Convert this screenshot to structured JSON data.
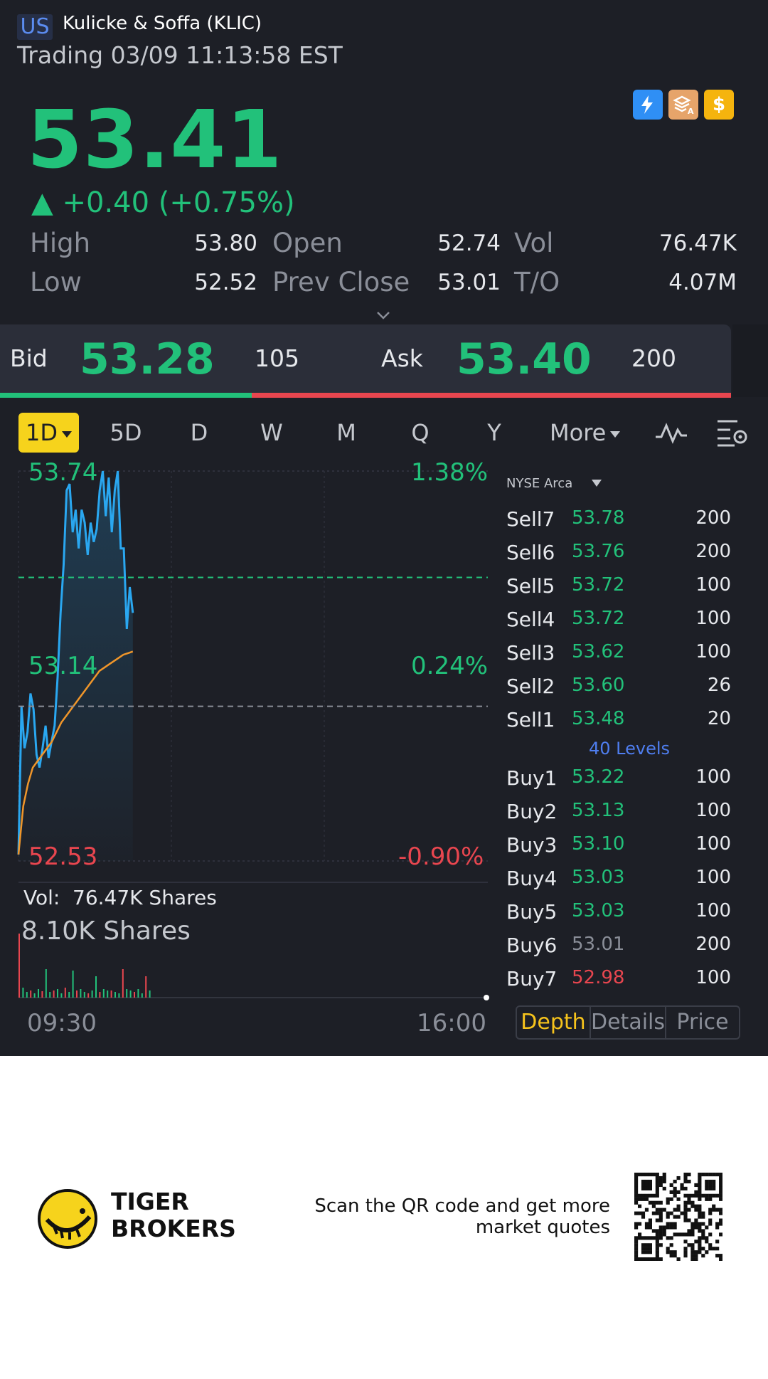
{
  "header": {
    "market": "US",
    "stock_name": "Kulicke & Soffa (KLIC)",
    "status": "Trading 03/09 11:13:58 EST",
    "price": "53.41",
    "change": "▲ +0.40 (+0.75%)",
    "badge_icons": [
      "lightning-1-icon",
      "stack-a-icon",
      "dollar-icon"
    ]
  },
  "stats": {
    "high_label": "High",
    "high": "53.80",
    "low_label": "Low",
    "low": "52.52",
    "open_label": "Open",
    "open": "52.74",
    "prev_close_label": "Prev Close",
    "prev_close": "53.01",
    "vol_label": "Vol",
    "vol": "76.47K",
    "to_label": "T/O",
    "to": "4.07M"
  },
  "bidask": {
    "bid_label": "Bid",
    "bid": "53.28",
    "bid_size": "105",
    "ask_label": "Ask",
    "ask": "53.40",
    "ask_size": "200",
    "bid_ratio": 0.344
  },
  "tabs": [
    "1D",
    "5D",
    "D",
    "W",
    "M",
    "Q",
    "Y",
    "More"
  ],
  "chart": {
    "labels": {
      "top_price": "53.74",
      "top_pct": "1.38%",
      "mid_price": "53.14",
      "mid_pct": "0.24%",
      "low_price": "52.53",
      "low_pct": "-0.90%",
      "vol_label": "Vol:",
      "vol_value": "76.47K Shares",
      "vol_max": "8.10K Shares",
      "time_start": "09:30",
      "time_end": "16:00"
    }
  },
  "chart_data": {
    "type": "line",
    "x_range": [
      "09:30",
      "16:00"
    ],
    "ylim": [
      52.53,
      53.74
    ],
    "prev_close": 53.01,
    "series": [
      {
        "values": [
          52.55,
          53.01,
          52.88,
          52.93,
          53.05,
          53.0,
          52.86,
          52.82,
          52.88,
          52.95,
          52.85,
          52.9,
          52.95,
          53.1,
          53.3,
          53.45,
          53.68,
          53.7,
          53.55,
          53.62,
          53.5,
          53.62,
          53.58,
          53.48,
          53.58,
          53.52,
          53.56,
          53.68,
          53.74,
          53.6,
          53.72,
          53.55,
          53.68,
          53.74,
          53.5,
          53.5,
          53.25,
          53.38,
          53.3
        ]
      },
      {
        "values": [
          52.55,
          52.7,
          52.77,
          52.82,
          52.84,
          52.86,
          52.88,
          52.9,
          52.93,
          52.96,
          52.98,
          53.0,
          53.02,
          53.04,
          53.06,
          53.08,
          53.1,
          53.12,
          53.13,
          53.14,
          53.15,
          53.16,
          53.17,
          53.175,
          53.18
        ]
      }
    ]
  },
  "orderbook": {
    "exchange": "NYSE Arca",
    "sells": [
      {
        "label": "Sell7",
        "price": "53.78",
        "qty": "200"
      },
      {
        "label": "Sell6",
        "price": "53.76",
        "qty": "200"
      },
      {
        "label": "Sell5",
        "price": "53.72",
        "qty": "100"
      },
      {
        "label": "Sell4",
        "price": "53.72",
        "qty": "100"
      },
      {
        "label": "Sell3",
        "price": "53.62",
        "qty": "100"
      },
      {
        "label": "Sell2",
        "price": "53.60",
        "qty": "26"
      },
      {
        "label": "Sell1",
        "price": "53.48",
        "qty": "20"
      }
    ],
    "levels": "40 Levels",
    "buys": [
      {
        "label": "Buy1",
        "price": "53.22",
        "qty": "100",
        "color": "#22c17a"
      },
      {
        "label": "Buy2",
        "price": "53.13",
        "qty": "100",
        "color": "#22c17a"
      },
      {
        "label": "Buy3",
        "price": "53.10",
        "qty": "100",
        "color": "#22c17a"
      },
      {
        "label": "Buy4",
        "price": "53.03",
        "qty": "100",
        "color": "#22c17a"
      },
      {
        "label": "Buy5",
        "price": "53.03",
        "qty": "100",
        "color": "#22c17a"
      },
      {
        "label": "Buy6",
        "price": "53.01",
        "qty": "200",
        "color": "#8a8e98"
      },
      {
        "label": "Buy7",
        "price": "52.98",
        "qty": "100",
        "color": "#e8464f"
      }
    ],
    "segments": [
      "Depth",
      "Details",
      "Price"
    ]
  },
  "footer": {
    "brand_line1": "TIGER",
    "brand_line2": "BROKERS",
    "scan_text": "Scan the QR code and get more market quotes"
  },
  "colors": {
    "up": "#22c17a",
    "down": "#e8464f",
    "line": "#2aa7f0",
    "avg": "#f0962a",
    "accent": "#f6d31c"
  }
}
